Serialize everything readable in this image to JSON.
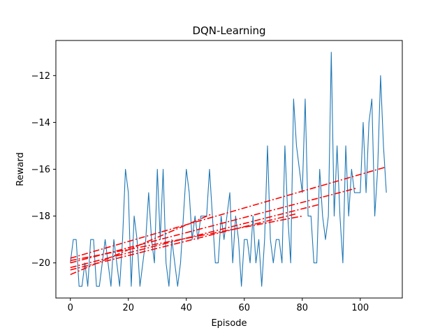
{
  "chart_data": {
    "type": "line",
    "title": "DQN-Learning",
    "xlabel": "Episode",
    "ylabel": "Reward",
    "xlim": [
      -5,
      114.5
    ],
    "ylim": [
      -21.5,
      -10.5
    ],
    "xticks": [
      0,
      20,
      40,
      60,
      80,
      100
    ],
    "yticks": [
      -20,
      -18,
      -16,
      -14,
      -12
    ],
    "ytick_labels": [
      "−20",
      "−18",
      "−16",
      "−14",
      "−12"
    ],
    "grid": false,
    "series": [
      {
        "style": "solid",
        "color": "#1f77b4",
        "x": [
          0,
          1,
          2,
          3,
          4,
          5,
          6,
          7,
          8,
          9,
          10,
          11,
          12,
          13,
          14,
          15,
          16,
          17,
          18,
          19,
          20,
          21,
          22,
          23,
          24,
          25,
          26,
          27,
          28,
          29,
          30,
          31,
          32,
          33,
          34,
          35,
          36,
          37,
          38,
          39,
          40,
          41,
          42,
          43,
          44,
          45,
          46,
          47,
          48,
          49,
          50,
          51,
          52,
          53,
          54,
          55,
          56,
          57,
          58,
          59,
          60,
          61,
          62,
          63,
          64,
          65,
          66,
          67,
          68,
          69,
          70,
          71,
          72,
          73,
          74,
          75,
          76,
          77,
          78,
          79,
          80,
          81,
          82,
          83,
          84,
          85,
          86,
          87,
          88,
          89,
          90,
          91,
          92,
          93,
          94,
          95,
          96,
          97,
          98,
          99,
          100,
          101,
          102,
          103,
          104,
          105,
          106,
          107,
          108,
          109
        ],
        "y": [
          -20,
          -19,
          -19,
          -21,
          -21,
          -20,
          -21,
          -19,
          -19,
          -21,
          -21,
          -20,
          -19,
          -20,
          -21,
          -19,
          -20,
          -21,
          -19,
          -16,
          -17,
          -21,
          -18,
          -19,
          -21,
          -20,
          -19,
          -17,
          -19,
          -20,
          -16,
          -19,
          -16,
          -20,
          -21,
          -19,
          -20,
          -21,
          -20,
          -18,
          -16,
          -17,
          -19,
          -18,
          -19,
          -18,
          -18,
          -18,
          -16,
          -18,
          -20,
          -20,
          -18,
          -19,
          -18,
          -17,
          -20,
          -18,
          -19,
          -21,
          -19,
          -19,
          -20,
          -18,
          -20,
          -19,
          -21,
          -19,
          -15,
          -19,
          -20,
          -19,
          -19,
          -20,
          -15,
          -18,
          -20,
          -13,
          -15,
          -16,
          -17,
          -13,
          -18,
          -18,
          -20,
          -20,
          -16,
          -18,
          -19,
          -18,
          -11,
          -18,
          -15,
          -18,
          -20,
          -15,
          -18,
          -16,
          -17,
          -17,
          -17,
          -14,
          -17,
          -14,
          -13,
          -18,
          -16,
          -12,
          -15,
          -17
        ]
      },
      {
        "style": "dashdot",
        "color": "#ff0000",
        "x": [
          0,
          49
        ],
        "y": [
          -20.5,
          -17.9
        ]
      },
      {
        "style": "dashdot",
        "color": "#ff0000",
        "x": [
          0,
          78
        ],
        "y": [
          -20.3,
          -17.9
        ]
      },
      {
        "style": "dashdot",
        "color": "#ff0000",
        "x": [
          0,
          86
        ],
        "y": [
          -20.2,
          -17.5
        ]
      },
      {
        "style": "dashdot",
        "color": "#ff0000",
        "x": [
          0,
          99
        ],
        "y": [
          -20.0,
          -16.8
        ]
      },
      {
        "style": "dashdot",
        "color": "#ff0000",
        "x": [
          0,
          109
        ],
        "y": [
          -19.8,
          -15.9
        ]
      },
      {
        "style": "dashdot",
        "color": "#ff0000",
        "x": [
          0,
          80
        ],
        "y": [
          -19.9,
          -18.0
        ]
      }
    ]
  }
}
